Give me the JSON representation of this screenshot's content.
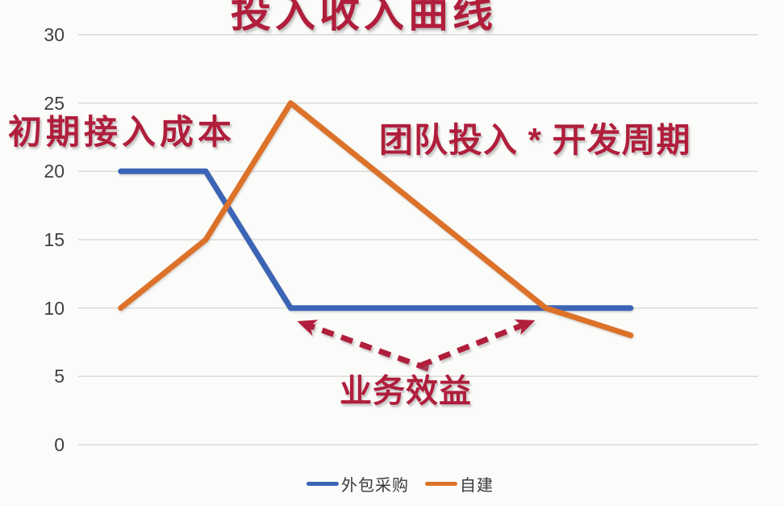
{
  "title": "投入收入曲线",
  "annotations": {
    "initial_cost": "初期接入成本",
    "team_investment": "团队投入 * 开发周期",
    "business_benefit": "业务效益",
    "arrow_color": "#b01e3c"
  },
  "legend": {
    "items": [
      {
        "label": "外包采购",
        "color": "#3b64b5"
      },
      {
        "label": "自建",
        "color": "#dc7229"
      }
    ]
  },
  "colors": {
    "background": "#fbfbf9",
    "gridline": "#d9d9d9",
    "title_red": "#b01e3c",
    "blue_series": "#3b64b5",
    "orange_series": "#dc7229",
    "tick_text": "#404040"
  },
  "chart_data": {
    "type": "line",
    "title": "投入收入曲线",
    "x": [
      1,
      2,
      3,
      4,
      5,
      6,
      7
    ],
    "series": [
      {
        "name": "外包采购",
        "color": "#3b64b5",
        "values": [
          20,
          20,
          10,
          10,
          10,
          10,
          10
        ]
      },
      {
        "name": "自建",
        "color": "#dc7229",
        "values": [
          10,
          15,
          25,
          20,
          15,
          10,
          8
        ]
      }
    ],
    "xlabel": "",
    "ylabel": "",
    "yticks": [
      0,
      5,
      10,
      15,
      20,
      25,
      30
    ],
    "ylim": [
      0,
      30
    ],
    "grid": true,
    "legend_position": "bottom",
    "annotations": [
      {
        "text": "初期接入成本",
        "refers_to": "blue line start at 20"
      },
      {
        "text": "团队投入 * 开发周期",
        "refers_to": "orange line peak/decline"
      },
      {
        "text": "业务效益",
        "refers_to": "crossing points at value 10, marked with dashed arrows"
      }
    ]
  }
}
